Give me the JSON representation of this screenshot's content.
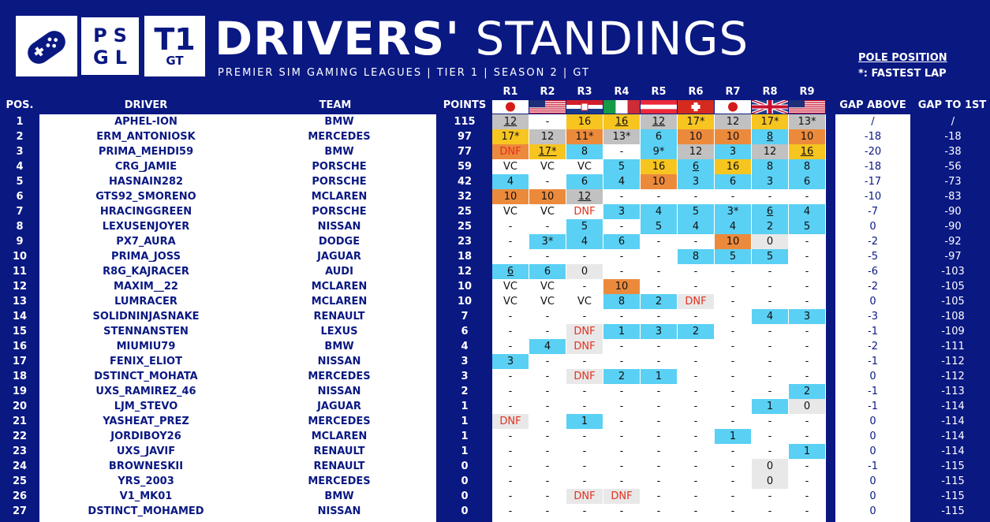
{
  "header": {
    "title_bold": "DRIVERS'",
    "title_light": "STANDINGS",
    "subtitle": "PREMIER SIM GAMING LEAGUES | TIER 1 | SEASON 2 | GT",
    "logo_psgl_top": "PS",
    "logo_psgl_bottom": "GL",
    "logo_t1": "T1",
    "logo_gt": "GT",
    "legend_pole": "POLE POSITION",
    "legend_fastest": "*: FASTEST LAP"
  },
  "columns": {
    "pos": "POS.",
    "driver": "DRIVER",
    "team": "TEAM",
    "points": "POINTS",
    "gap_above": "GAP ABOVE",
    "gap_first": "GAP TO 1ST"
  },
  "rounds": [
    {
      "label": "R1",
      "flag": "japan"
    },
    {
      "label": "R2",
      "flag": "usa"
    },
    {
      "label": "R3",
      "flag": "croatia"
    },
    {
      "label": "R4",
      "flag": "italy"
    },
    {
      "label": "R5",
      "flag": "austria"
    },
    {
      "label": "R6",
      "flag": "switzerland"
    },
    {
      "label": "R7",
      "flag": "japan"
    },
    {
      "label": "R8",
      "flag": "uk"
    },
    {
      "label": "R9",
      "flag": "usa"
    }
  ],
  "colors": {
    "background": "#0a1882",
    "gold": "#f7c520",
    "silver": "#c1c1c1",
    "bronze": "#ec8a3c",
    "points_blue": "#5ad0f4",
    "no_points_grey": "#e8e8e8",
    "dnf_red": "#e5301f"
  },
  "rows": [
    {
      "pos": "1",
      "driver": "APHEL-ION",
      "team": "BMW",
      "points": "115",
      "gap_above": "/",
      "gap_first": "/",
      "results": [
        [
          "12",
          "s",
          "u"
        ],
        [
          "-"
        ],
        [
          "16",
          "g"
        ],
        [
          "16",
          "g",
          "u"
        ],
        [
          "12",
          "s",
          "u"
        ],
        [
          "17*",
          "g"
        ],
        [
          "12",
          "s"
        ],
        [
          "17*",
          "g"
        ],
        [
          "13*",
          "s"
        ]
      ]
    },
    {
      "pos": "2",
      "driver": "ERM_ANTONIOSK",
      "team": "MERCEDES",
      "points": "97",
      "gap_above": "-18",
      "gap_first": "-18",
      "results": [
        [
          "17*",
          "g"
        ],
        [
          "12",
          "s"
        ],
        [
          "11*",
          "b"
        ],
        [
          "13*",
          "s"
        ],
        [
          "6",
          "c"
        ],
        [
          "10",
          "b"
        ],
        [
          "10",
          "b"
        ],
        [
          "8",
          "c",
          "u"
        ],
        [
          "10",
          "b"
        ]
      ]
    },
    {
      "pos": "3",
      "driver": "PRIMA_MEHDI59",
      "team": "BMW",
      "points": "77",
      "gap_above": "-20",
      "gap_first": "-38",
      "results": [
        [
          "DNF",
          "b"
        ],
        [
          "17*",
          "g",
          "u"
        ],
        [
          "8",
          "c"
        ],
        [
          "-"
        ],
        [
          "9*",
          "c"
        ],
        [
          "12",
          "s"
        ],
        [
          "3",
          "c"
        ],
        [
          "12",
          "s"
        ],
        [
          "16",
          "g",
          "u"
        ]
      ]
    },
    {
      "pos": "4",
      "driver": "CRG_JAMIE",
      "team": "PORSCHE",
      "points": "59",
      "gap_above": "-18",
      "gap_first": "-56",
      "results": [
        [
          "VC"
        ],
        [
          "VC"
        ],
        [
          "VC"
        ],
        [
          "5",
          "c"
        ],
        [
          "16",
          "g"
        ],
        [
          "6",
          "c",
          "u"
        ],
        [
          "16",
          "g"
        ],
        [
          "8",
          "c"
        ],
        [
          "8",
          "c"
        ]
      ]
    },
    {
      "pos": "5",
      "driver": "HASNAIN282",
      "team": "PORSCHE",
      "points": "42",
      "gap_above": "-17",
      "gap_first": "-73",
      "results": [
        [
          "4",
          "c"
        ],
        [
          "-"
        ],
        [
          "6",
          "c"
        ],
        [
          "4",
          "c"
        ],
        [
          "10",
          "b"
        ],
        [
          "3",
          "c"
        ],
        [
          "6",
          "c"
        ],
        [
          "3",
          "c"
        ],
        [
          "6",
          "c"
        ]
      ]
    },
    {
      "pos": "6",
      "driver": "GTS92_SMORENO",
      "team": "MCLAREN",
      "points": "32",
      "gap_above": "-10",
      "gap_first": "-83",
      "results": [
        [
          "10",
          "b"
        ],
        [
          "10",
          "b"
        ],
        [
          "12",
          "s",
          "u"
        ],
        [
          "-"
        ],
        [
          "-"
        ],
        [
          "-"
        ],
        [
          "-"
        ],
        [
          "-"
        ],
        [
          "-"
        ]
      ]
    },
    {
      "pos": "7",
      "driver": "HRACINGGREEN",
      "team": "PORSCHE",
      "points": "25",
      "gap_above": "-7",
      "gap_first": "-90",
      "results": [
        [
          "VC"
        ],
        [
          "VC"
        ],
        [
          "DNF"
        ],
        [
          "3",
          "c"
        ],
        [
          "4",
          "c"
        ],
        [
          "5",
          "c"
        ],
        [
          "3*",
          "c"
        ],
        [
          "6",
          "c",
          "u"
        ],
        [
          "4",
          "c"
        ]
      ]
    },
    {
      "pos": "8",
      "driver": "LEXUSENJOYER",
      "team": "NISSAN",
      "points": "25",
      "gap_above": "0",
      "gap_first": "-90",
      "results": [
        [
          "-"
        ],
        [
          "-"
        ],
        [
          "5",
          "c"
        ],
        [
          "-"
        ],
        [
          "5",
          "c"
        ],
        [
          "4",
          "c"
        ],
        [
          "4",
          "c"
        ],
        [
          "2",
          "c"
        ],
        [
          "5",
          "c"
        ]
      ]
    },
    {
      "pos": "9",
      "driver": "PX7_AURA",
      "team": "DODGE",
      "points": "23",
      "gap_above": "-2",
      "gap_first": "-92",
      "results": [
        [
          "-"
        ],
        [
          "3*",
          "c"
        ],
        [
          "4",
          "c"
        ],
        [
          "6",
          "c"
        ],
        [
          "-"
        ],
        [
          "-"
        ],
        [
          "10",
          "b"
        ],
        [
          "0",
          "n"
        ],
        [
          "-"
        ]
      ]
    },
    {
      "pos": "10",
      "driver": "PRIMA_JOSS",
      "team": "JAGUAR",
      "points": "18",
      "gap_above": "-5",
      "gap_first": "-97",
      "results": [
        [
          "-"
        ],
        [
          "-"
        ],
        [
          "-"
        ],
        [
          "-"
        ],
        [
          "-"
        ],
        [
          "8",
          "c"
        ],
        [
          "5",
          "c"
        ],
        [
          "5",
          "c"
        ],
        [
          "-"
        ]
      ]
    },
    {
      "pos": "11",
      "driver": "R8G_KAJRACER",
      "team": "AUDI",
      "points": "12",
      "gap_above": "-6",
      "gap_first": "-103",
      "results": [
        [
          "6",
          "c",
          "u"
        ],
        [
          "6",
          "c"
        ],
        [
          "0",
          "n"
        ],
        [
          "-"
        ],
        [
          "-"
        ],
        [
          "-"
        ],
        [
          "-"
        ],
        [
          "-"
        ],
        [
          "-"
        ]
      ]
    },
    {
      "pos": "12",
      "driver": "MAXIM__22",
      "team": "MCLAREN",
      "points": "10",
      "gap_above": "-2",
      "gap_first": "-105",
      "results": [
        [
          "VC"
        ],
        [
          "VC"
        ],
        [
          "-"
        ],
        [
          "10",
          "b"
        ],
        [
          "-"
        ],
        [
          "-"
        ],
        [
          "-"
        ],
        [
          "-"
        ],
        [
          "-"
        ]
      ]
    },
    {
      "pos": "13",
      "driver": "LUMRACER",
      "team": "MCLAREN",
      "points": "10",
      "gap_above": "0",
      "gap_first": "-105",
      "results": [
        [
          "VC"
        ],
        [
          "VC"
        ],
        [
          "VC"
        ],
        [
          "8",
          "c"
        ],
        [
          "2",
          "c"
        ],
        [
          "DNF",
          "n"
        ],
        [
          "-"
        ],
        [
          "-"
        ],
        [
          "-"
        ]
      ]
    },
    {
      "pos": "14",
      "driver": "SOLIDNINJASNAKE",
      "team": "RENAULT",
      "points": "7",
      "gap_above": "-3",
      "gap_first": "-108",
      "results": [
        [
          "-"
        ],
        [
          "-"
        ],
        [
          "-"
        ],
        [
          "-"
        ],
        [
          "-"
        ],
        [
          "-"
        ],
        [
          "-"
        ],
        [
          "4",
          "c"
        ],
        [
          "3",
          "c"
        ]
      ]
    },
    {
      "pos": "15",
      "driver": "STENNANSTEN",
      "team": "LEXUS",
      "points": "6",
      "gap_above": "-1",
      "gap_first": "-109",
      "results": [
        [
          "-"
        ],
        [
          "-"
        ],
        [
          "DNF",
          "n"
        ],
        [
          "1",
          "c"
        ],
        [
          "3",
          "c"
        ],
        [
          "2",
          "c"
        ],
        [
          "-"
        ],
        [
          "-"
        ],
        [
          "-"
        ]
      ]
    },
    {
      "pos": "16",
      "driver": "MIUMIU79",
      "team": "BMW",
      "points": "4",
      "gap_above": "-2",
      "gap_first": "-111",
      "results": [
        [
          "-"
        ],
        [
          "4",
          "c"
        ],
        [
          "DNF",
          "n"
        ],
        [
          "-"
        ],
        [
          "-"
        ],
        [
          "-"
        ],
        [
          "-"
        ],
        [
          "-"
        ],
        [
          "-"
        ]
      ]
    },
    {
      "pos": "17",
      "driver": "FENIX_ELIOT",
      "team": "NISSAN",
      "points": "3",
      "gap_above": "-1",
      "gap_first": "-112",
      "results": [
        [
          "3",
          "c"
        ],
        [
          "-"
        ],
        [
          "-"
        ],
        [
          "-"
        ],
        [
          "-"
        ],
        [
          "-"
        ],
        [
          "-"
        ],
        [
          "-"
        ],
        [
          "-"
        ]
      ]
    },
    {
      "pos": "18",
      "driver": "DSTINCT_MOHATA",
      "team": "MERCEDES",
      "points": "3",
      "gap_above": "0",
      "gap_first": "-112",
      "results": [
        [
          "-"
        ],
        [
          "-"
        ],
        [
          "DNF",
          "n"
        ],
        [
          "2",
          "c"
        ],
        [
          "1",
          "c"
        ],
        [
          "-"
        ],
        [
          "-"
        ],
        [
          "-"
        ],
        [
          "-"
        ]
      ]
    },
    {
      "pos": "19",
      "driver": "UXS_RAMIREZ_46",
      "team": "NISSAN",
      "points": "2",
      "gap_above": "-1",
      "gap_first": "-113",
      "results": [
        [
          "-"
        ],
        [
          "-"
        ],
        [
          "-"
        ],
        [
          "-"
        ],
        [
          "-"
        ],
        [
          "-"
        ],
        [
          "-"
        ],
        [
          "-"
        ],
        [
          "2",
          "c"
        ]
      ]
    },
    {
      "pos": "20",
      "driver": "LJM_STEVO",
      "team": "JAGUAR",
      "points": "1",
      "gap_above": "-1",
      "gap_first": "-114",
      "results": [
        [
          "-"
        ],
        [
          "-"
        ],
        [
          "-"
        ],
        [
          "-"
        ],
        [
          "-"
        ],
        [
          "-"
        ],
        [
          "-"
        ],
        [
          "1",
          "c"
        ],
        [
          "0",
          "n"
        ]
      ]
    },
    {
      "pos": "21",
      "driver": "YASHEAT_PREZ",
      "team": "MERCEDES",
      "points": "1",
      "gap_above": "0",
      "gap_first": "-114",
      "results": [
        [
          "DNF",
          "n"
        ],
        [
          "-"
        ],
        [
          "1",
          "c"
        ],
        [
          "-"
        ],
        [
          "-"
        ],
        [
          "-"
        ],
        [
          "-"
        ],
        [
          "-"
        ],
        [
          "-"
        ]
      ]
    },
    {
      "pos": "22",
      "driver": "JORDIBOY26",
      "team": "MCLAREN",
      "points": "1",
      "gap_above": "0",
      "gap_first": "-114",
      "results": [
        [
          "-"
        ],
        [
          "-"
        ],
        [
          "-"
        ],
        [
          "-"
        ],
        [
          "-"
        ],
        [
          "-"
        ],
        [
          "1",
          "c"
        ],
        [
          "-"
        ],
        [
          "-"
        ]
      ]
    },
    {
      "pos": "23",
      "driver": "UXS_JAVIF",
      "team": "RENAULT",
      "points": "1",
      "gap_above": "0",
      "gap_first": "-114",
      "results": [
        [
          "-"
        ],
        [
          "-"
        ],
        [
          "-"
        ],
        [
          "-"
        ],
        [
          "-"
        ],
        [
          "-"
        ],
        [
          "-"
        ],
        [
          "-"
        ],
        [
          "1",
          "c"
        ]
      ]
    },
    {
      "pos": "24",
      "driver": "BROWNESKII",
      "team": "RENAULT",
      "points": "0",
      "gap_above": "-1",
      "gap_first": "-115",
      "results": [
        [
          "-"
        ],
        [
          "-"
        ],
        [
          "-"
        ],
        [
          "-"
        ],
        [
          "-"
        ],
        [
          "-"
        ],
        [
          "-"
        ],
        [
          "0",
          "n"
        ],
        [
          "-"
        ]
      ]
    },
    {
      "pos": "25",
      "driver": "YRS_2003",
      "team": "MERCEDES",
      "points": "0",
      "gap_above": "0",
      "gap_first": "-115",
      "results": [
        [
          "-"
        ],
        [
          "-"
        ],
        [
          "-"
        ],
        [
          "-"
        ],
        [
          "-"
        ],
        [
          "-"
        ],
        [
          "-"
        ],
        [
          "0",
          "n"
        ],
        [
          "-"
        ]
      ]
    },
    {
      "pos": "26",
      "driver": "V1_MK01",
      "team": "BMW",
      "points": "0",
      "gap_above": "0",
      "gap_first": "-115",
      "results": [
        [
          "-"
        ],
        [
          "-"
        ],
        [
          "DNF",
          "n"
        ],
        [
          "DNF",
          "n"
        ],
        [
          "-"
        ],
        [
          "-"
        ],
        [
          "-"
        ],
        [
          "-"
        ],
        [
          "-"
        ]
      ]
    },
    {
      "pos": "27",
      "driver": "DSTINCT_MOHAMED",
      "team": "NISSAN",
      "points": "0",
      "gap_above": "0",
      "gap_first": "-115",
      "results": [
        [
          "-"
        ],
        [
          "-"
        ],
        [
          "-"
        ],
        [
          "-"
        ],
        [
          "-"
        ],
        [
          "-"
        ],
        [
          "-"
        ],
        [
          "-"
        ],
        [
          "-"
        ]
      ]
    }
  ]
}
